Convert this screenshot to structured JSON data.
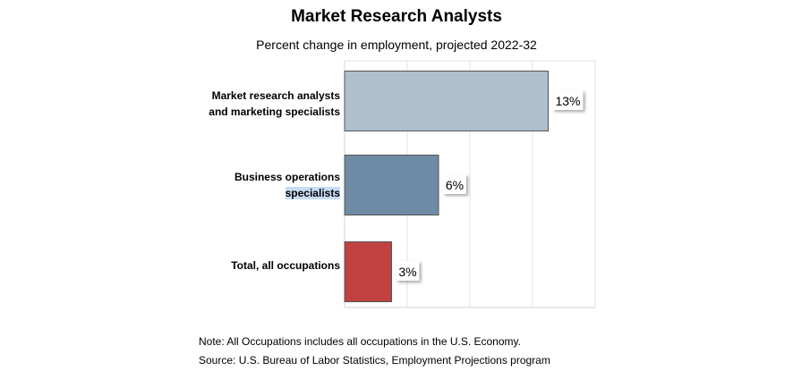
{
  "chart_data": {
    "type": "bar",
    "orientation": "horizontal",
    "title": "Market Research Analysts",
    "subtitle": "Percent change in employment, projected 2022-32",
    "categories": [
      "Market research analysts and marketing specialists",
      "Business operations specialists",
      "Total, all occupations"
    ],
    "category_lines": [
      [
        "Market research analysts",
        "and marketing specialists"
      ],
      [
        "Business operations",
        "specialists"
      ],
      [
        "Total, all occupations"
      ]
    ],
    "values": [
      13,
      6,
      3
    ],
    "value_labels": [
      "13%",
      "6%",
      "3%"
    ],
    "bar_colors": [
      "#aebfcd",
      "#6f8ba6",
      "#c0413f"
    ],
    "xlim": [
      0,
      16
    ],
    "grid": true
  },
  "notes": {
    "note": "Note: All Occupations includes all occupations in the U.S. Economy.",
    "source": "Source: U.S. Bureau of Labor Statistics, Employment Projections program"
  }
}
